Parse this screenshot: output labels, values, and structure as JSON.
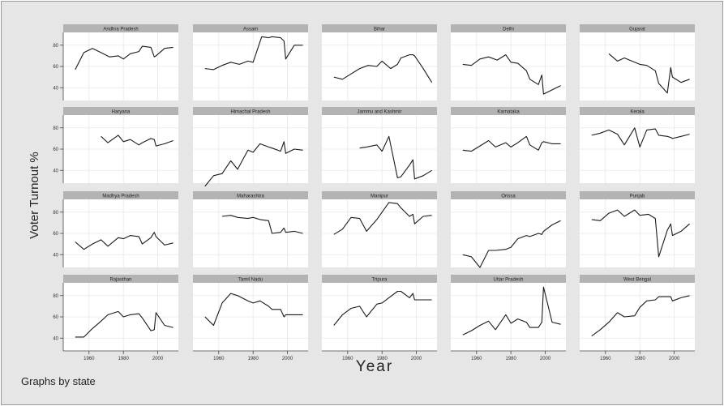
{
  "chart_data": {
    "type": "line",
    "layout": "small-multiples 4x5",
    "xlabel": "Year",
    "ylabel": "Voter Turnout %",
    "note": "Graphs by state",
    "x_ticks": [
      1960,
      1980,
      2000
    ],
    "x_tick_labels": [
      "1960",
      "1980",
      "2000"
    ],
    "xlim": [
      1945,
      2012
    ],
    "y_ticks": [
      40,
      60,
      80
    ],
    "y_tick_labels": [
      "40",
      "60",
      "80"
    ],
    "ylim": [
      28,
      92
    ],
    "grid": true,
    "panels": [
      {
        "state": "Andhra Pradesh",
        "x": [
          1952,
          1957,
          1962,
          1967,
          1972,
          1977,
          1980,
          1984,
          1989,
          1991,
          1996,
          1998,
          1999,
          2004,
          2009
        ],
        "y": [
          57,
          73,
          77,
          73,
          69,
          70,
          67,
          72,
          74,
          79,
          78,
          69,
          70,
          77,
          78
        ]
      },
      {
        "state": "Assam",
        "x": [
          1952,
          1957,
          1962,
          1967,
          1972,
          1977,
          1980,
          1985,
          1989,
          1991,
          1996,
          1998,
          1999,
          2004,
          2009
        ],
        "y": [
          58,
          57,
          61,
          64,
          62,
          65,
          64,
          88,
          87,
          88,
          87,
          84,
          67,
          80,
          80
        ]
      },
      {
        "state": "Bihar",
        "x": [
          1952,
          1957,
          1962,
          1967,
          1972,
          1977,
          1980,
          1985,
          1989,
          1991,
          1996,
          1998,
          1999,
          2004,
          2009
        ],
        "y": [
          50,
          48,
          53,
          58,
          61,
          60,
          65,
          58,
          62,
          68,
          71,
          71,
          70,
          58,
          45
        ]
      },
      {
        "state": "Delhi",
        "x": [
          1952,
          1957,
          1962,
          1967,
          1972,
          1977,
          1980,
          1984,
          1989,
          1991,
          1996,
          1998,
          1999,
          2004,
          2009
        ],
        "y": [
          62,
          61,
          67,
          69,
          66,
          71,
          64,
          63,
          56,
          48,
          43,
          52,
          34,
          38,
          42
        ]
      },
      {
        "state": "Gujarat",
        "x": [
          1962,
          1967,
          1971,
          1977,
          1980,
          1984,
          1989,
          1991,
          1996,
          1998,
          1999,
          2004,
          2009
        ],
        "y": [
          72,
          65,
          68,
          64,
          62,
          61,
          56,
          44,
          35,
          59,
          50,
          45,
          48
        ]
      },
      {
        "state": "Haryana",
        "x": [
          1967,
          1971,
          1977,
          1980,
          1984,
          1989,
          1991,
          1996,
          1998,
          1999,
          2004,
          2009
        ],
        "y": [
          72,
          66,
          73,
          67,
          69,
          64,
          66,
          70,
          69,
          63,
          65,
          68
        ]
      },
      {
        "state": "Himachal Pradesh",
        "x": [
          1952,
          1957,
          1962,
          1967,
          1971,
          1977,
          1980,
          1984,
          1989,
          1991,
          1996,
          1998,
          1999,
          2004,
          2009
        ],
        "y": [
          25,
          35,
          37,
          49,
          41,
          59,
          57,
          65,
          62,
          61,
          58,
          67,
          56,
          60,
          59
        ]
      },
      {
        "state": "Jammu and Kashmir",
        "x": [
          1967,
          1971,
          1977,
          1980,
          1984,
          1989,
          1991,
          1996,
          1998,
          1999,
          2004,
          2009
        ],
        "y": [
          61,
          62,
          64,
          58,
          72,
          33,
          34,
          45,
          50,
          32,
          35,
          40
        ]
      },
      {
        "state": "Karnataka",
        "x": [
          1952,
          1957,
          1962,
          1967,
          1971,
          1977,
          1980,
          1984,
          1989,
          1991,
          1996,
          1998,
          1999,
          2004,
          2009
        ],
        "y": [
          59,
          58,
          63,
          68,
          62,
          66,
          62,
          66,
          72,
          64,
          59,
          66,
          67,
          65,
          65
        ]
      },
      {
        "state": "Kerala",
        "x": [
          1952,
          1957,
          1962,
          1967,
          1971,
          1977,
          1980,
          1984,
          1989,
          1991,
          1996,
          1998,
          1999,
          2004,
          2009
        ],
        "y": [
          73,
          75,
          78,
          74,
          64,
          80,
          62,
          78,
          79,
          73,
          72,
          71,
          70,
          72,
          74
        ]
      },
      {
        "state": "Madhya Pradesh",
        "x": [
          1952,
          1957,
          1962,
          1967,
          1971,
          1977,
          1980,
          1984,
          1989,
          1991,
          1996,
          1998,
          1999,
          2004,
          2009
        ],
        "y": [
          52,
          45,
          50,
          54,
          48,
          56,
          55,
          58,
          57,
          50,
          56,
          61,
          57,
          49,
          51
        ]
      },
      {
        "state": "Maharashtra",
        "x": [
          1962,
          1967,
          1971,
          1977,
          1980,
          1984,
          1989,
          1991,
          1996,
          1998,
          1999,
          2004,
          2009
        ],
        "y": [
          76,
          77,
          75,
          74,
          75,
          73,
          72,
          60,
          61,
          65,
          61,
          62,
          60
        ]
      },
      {
        "state": "Manipur",
        "x": [
          1952,
          1957,
          1962,
          1967,
          1971,
          1977,
          1980,
          1984,
          1989,
          1991,
          1996,
          1998,
          1999,
          2004,
          2009
        ],
        "y": [
          59,
          64,
          75,
          74,
          62,
          73,
          80,
          89,
          88,
          84,
          76,
          78,
          69,
          76,
          77
        ]
      },
      {
        "state": "Orissa",
        "x": [
          1952,
          1957,
          1962,
          1967,
          1971,
          1977,
          1980,
          1984,
          1989,
          1991,
          1996,
          1998,
          1999,
          2004,
          2009
        ],
        "y": [
          40,
          38,
          28,
          44,
          44,
          45,
          47,
          55,
          58,
          57,
          60,
          59,
          62,
          68,
          72
        ]
      },
      {
        "state": "Punjab",
        "x": [
          1952,
          1957,
          1962,
          1967,
          1971,
          1977,
          1980,
          1985,
          1989,
          1991,
          1996,
          1998,
          1999,
          2004,
          2009
        ],
        "y": [
          73,
          72,
          79,
          82,
          76,
          82,
          77,
          78,
          74,
          38,
          63,
          69,
          58,
          62,
          69
        ]
      },
      {
        "state": "Rajasthan",
        "x": [
          1952,
          1957,
          1962,
          1967,
          1971,
          1977,
          1980,
          1984,
          1989,
          1991,
          1996,
          1998,
          1999,
          2004,
          2009
        ],
        "y": [
          41,
          41,
          49,
          56,
          62,
          65,
          60,
          62,
          63,
          59,
          47,
          48,
          64,
          52,
          50
        ]
      },
      {
        "state": "Tamil Nadu",
        "x": [
          1952,
          1957,
          1962,
          1967,
          1971,
          1977,
          1980,
          1984,
          1989,
          1991,
          1996,
          1998,
          1999,
          2004,
          2009
        ],
        "y": [
          60,
          52,
          73,
          82,
          80,
          75,
          73,
          75,
          70,
          67,
          67,
          60,
          62,
          62,
          62
        ]
      },
      {
        "state": "Tripura",
        "x": [
          1952,
          1957,
          1962,
          1967,
          1971,
          1977,
          1980,
          1984,
          1989,
          1991,
          1996,
          1998,
          1999,
          2004,
          2009
        ],
        "y": [
          52,
          62,
          68,
          70,
          60,
          72,
          73,
          78,
          84,
          84,
          78,
          82,
          76,
          76,
          76
        ]
      },
      {
        "state": "Uttar Pradesh",
        "x": [
          1952,
          1957,
          1962,
          1967,
          1971,
          1977,
          1980,
          1984,
          1989,
          1991,
          1996,
          1998,
          1999,
          2004,
          2009
        ],
        "y": [
          43,
          47,
          52,
          56,
          48,
          62,
          54,
          58,
          55,
          50,
          50,
          55,
          88,
          55,
          53
        ]
      },
      {
        "state": "West Bengal",
        "x": [
          1952,
          1957,
          1962,
          1967,
          1971,
          1977,
          1980,
          1984,
          1989,
          1991,
          1996,
          1998,
          1999,
          2004,
          2009
        ],
        "y": [
          42,
          48,
          55,
          64,
          60,
          61,
          69,
          75,
          76,
          79,
          79,
          79,
          75,
          78,
          80
        ]
      }
    ]
  }
}
